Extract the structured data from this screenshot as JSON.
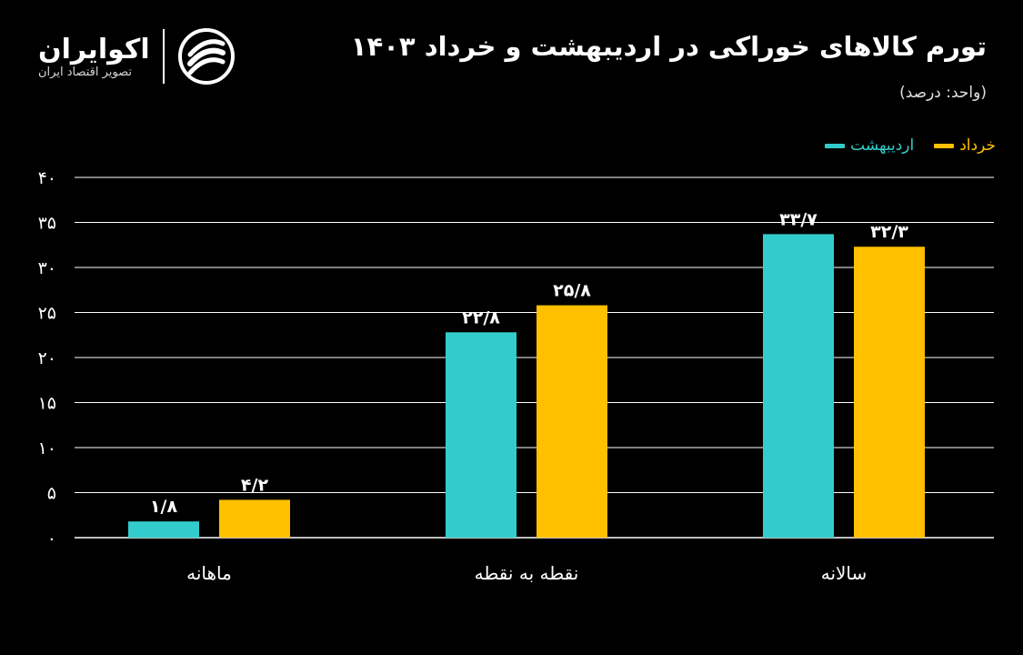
{
  "brand": {
    "name": "اکوایران",
    "tagline": "تصویر اقتصاد ایران"
  },
  "colors": {
    "background": "#000000",
    "series_1": "#33cccc",
    "series_2": "#ffc000",
    "text": "#ffffff",
    "grid": "#ffffff"
  },
  "chart_data": {
    "type": "bar",
    "title": "تورم کالاهای خوراکی در اردیبهشت و خرداد ۱۴۰۳",
    "subtitle": "(واحد: درصد)",
    "xlabel": "",
    "ylabel": "",
    "categories": [
      "ماهانه",
      "نقطه به نقطه",
      "سالانه"
    ],
    "series": [
      {
        "name": "اردیبهشت",
        "color": "#33cccc",
        "values": [
          1.8,
          22.8,
          33.7
        ],
        "labels": [
          "۱/۸",
          "۲۲/۸",
          "۳۳/۷"
        ]
      },
      {
        "name": "خرداد",
        "color": "#ffc000",
        "values": [
          4.2,
          25.8,
          32.3
        ],
        "labels": [
          "۴/۲",
          "۲۵/۸",
          "۳۲/۳"
        ]
      }
    ],
    "ylim": [
      0,
      40
    ],
    "yticks": [
      0,
      5,
      10,
      15,
      20,
      25,
      30,
      35,
      40
    ],
    "ytick_labels": [
      "۰",
      "۵",
      "۱۰",
      "۱۵",
      "۲۰",
      "۲۵",
      "۳۰",
      "۳۵",
      "۴۰"
    ],
    "grid": true,
    "legend_position": "top-right"
  }
}
